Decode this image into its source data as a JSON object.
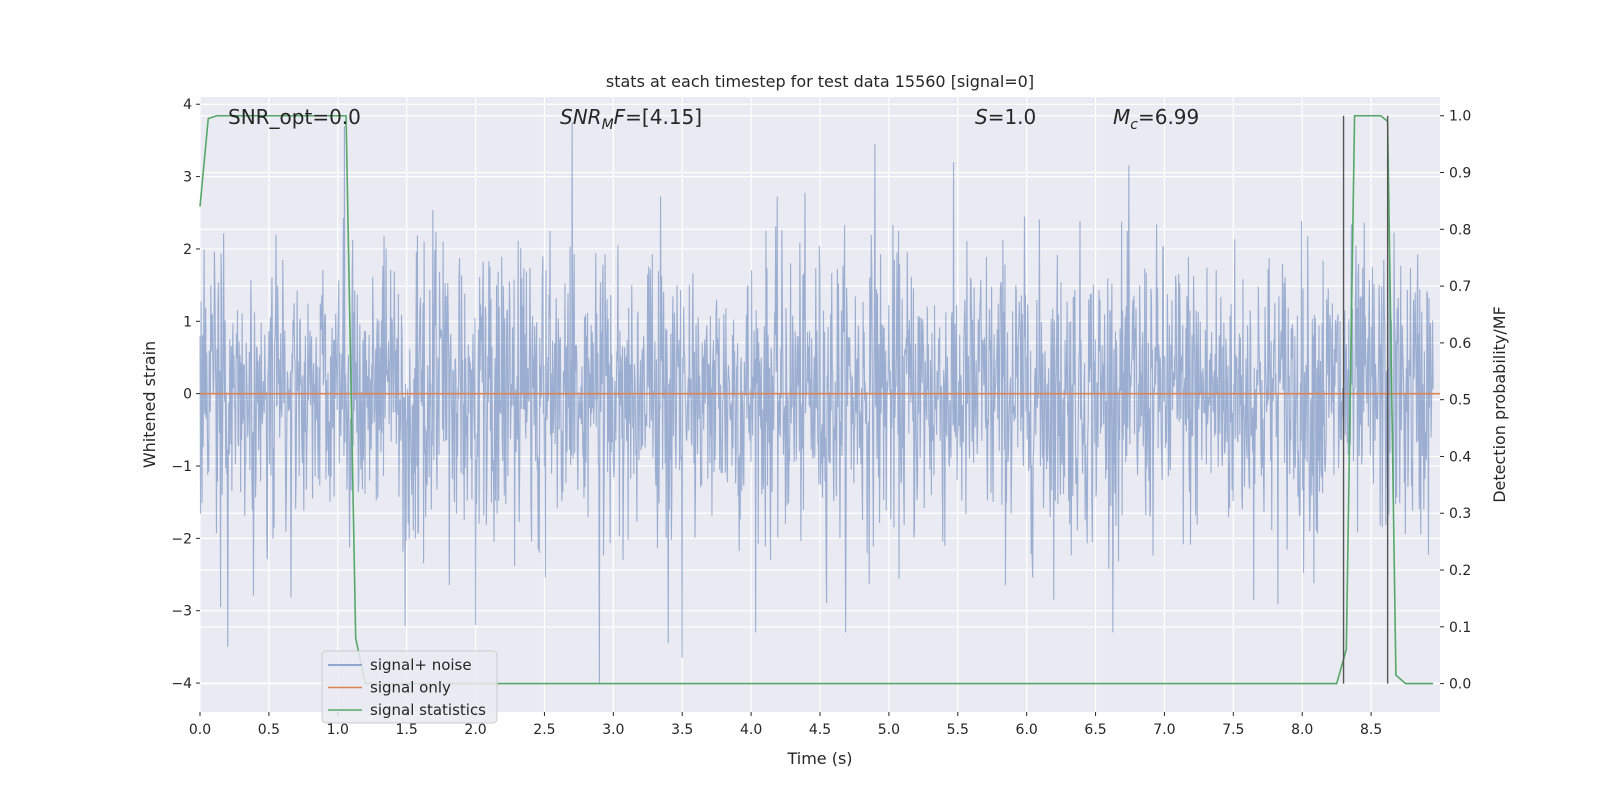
{
  "chart_data": {
    "type": "line",
    "title": "stats at each timestep for test data 15560 [signal=0]",
    "xlabel": "Time (s)",
    "ylabel_left": "Whitened strain",
    "ylabel_right": "Detection probability/MF",
    "xlim": [
      0.0,
      9.0
    ],
    "ylim_left": [
      -4.4,
      4.1
    ],
    "ylim_right": [
      -0.05,
      1.033
    ],
    "x_ticks": [
      "0.0",
      "0.5",
      "1.0",
      "1.5",
      "2.0",
      "2.5",
      "3.0",
      "3.5",
      "4.0",
      "4.5",
      "5.0",
      "5.5",
      "6.0",
      "6.5",
      "7.0",
      "7.5",
      "8.0",
      "8.5"
    ],
    "y_ticks_left": [
      "4",
      "3",
      "2",
      "1",
      "0",
      "−1",
      "−2",
      "−3",
      "−4"
    ],
    "y_ticks_right": [
      "1.0",
      "0.9",
      "0.8",
      "0.7",
      "0.6",
      "0.5",
      "0.4",
      "0.3",
      "0.2",
      "0.1",
      "0.0"
    ],
    "grid": true,
    "legend_position": "lower-left",
    "annotations": [
      {
        "segments": [
          {
            "text": "SNR_opt=0.0",
            "italic": false
          }
        ]
      },
      {
        "segments": [
          {
            "text": "SNR",
            "italic": true
          },
          {
            "text": "M",
            "italic": true,
            "sub": true
          },
          {
            "text": "F",
            "italic": true
          },
          {
            "text": "=[4.15]",
            "italic": false
          }
        ]
      },
      {
        "segments": [
          {
            "text": "S",
            "italic": true
          },
          {
            "text": "=1.0",
            "italic": false
          }
        ]
      },
      {
        "segments": [
          {
            "text": "M",
            "italic": true
          },
          {
            "text": "c",
            "italic": true,
            "sub": true
          },
          {
            "text": "=6.99",
            "italic": false
          }
        ]
      }
    ],
    "series": [
      {
        "name": "signal+ noise",
        "color": "#4c72b0",
        "axis": "left",
        "kind": "noise",
        "envelope_pos_typical": [
          1.2,
          2.3
        ],
        "envelope_neg_typical": [
          -1.3,
          -2.4
        ],
        "notable_peaks": [
          [
            2.7,
            3.75
          ],
          [
            4.9,
            3.45
          ],
          [
            1.05,
            3.7
          ],
          [
            0.2,
            -3.5
          ],
          [
            2.9,
            -4.0
          ],
          [
            3.5,
            -3.65
          ],
          [
            3.4,
            -3.45
          ],
          [
            2.0,
            -3.2
          ]
        ]
      },
      {
        "name": "signal only",
        "color": "#dd8452",
        "axis": "left",
        "x": [
          0.0,
          9.0
        ],
        "y": [
          0.0,
          0.0
        ]
      },
      {
        "name": "signal statistics",
        "color": "#55a868",
        "axis": "right",
        "x": [
          0.0,
          0.06,
          0.12,
          1.06,
          1.13,
          1.2,
          8.25,
          8.32,
          8.38,
          8.57,
          8.62,
          8.68,
          8.75,
          8.95
        ],
        "y": [
          0.84,
          0.995,
          1.0,
          1.0,
          0.08,
          0.0,
          0.0,
          0.06,
          1.0,
          1.0,
          0.99,
          0.015,
          0.0,
          0.0
        ]
      },
      {
        "name": "",
        "color": "#555555",
        "axis": "right",
        "kind": "vlines",
        "x": [
          8.3,
          8.62
        ],
        "y": [
          1.0,
          1.0
        ]
      }
    ]
  }
}
